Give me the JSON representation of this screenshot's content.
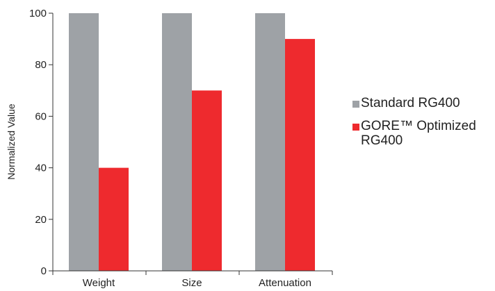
{
  "chart_data": {
    "type": "bar",
    "categories": [
      "Weight",
      "Size",
      "Attenuation"
    ],
    "series": [
      {
        "name": "Standard RG400",
        "values": [
          100,
          100,
          100
        ],
        "color": "#9ea2a6"
      },
      {
        "name": "GORE™ Optimized RG400",
        "values": [
          40,
          70,
          90
        ],
        "color": "#ee2a2e"
      }
    ],
    "title": "",
    "xlabel": "",
    "ylabel": "Normalized Value",
    "ylim": [
      0,
      100
    ],
    "yticks": [
      "0",
      "20",
      "40",
      "60",
      "80",
      "100"
    ],
    "grid": false,
    "legend_position": "right"
  }
}
